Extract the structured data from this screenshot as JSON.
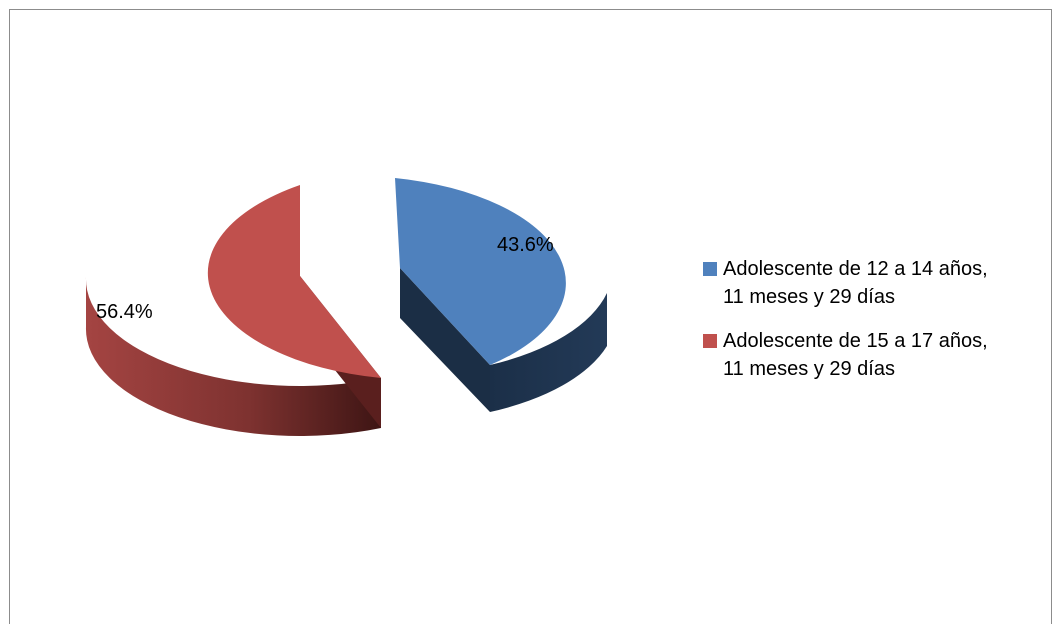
{
  "chart_data": {
    "type": "pie",
    "title": "",
    "style": "3d-exploded",
    "legend_position": "right",
    "series": [
      {
        "label_lines": [
          "Adolescente de 12 a 14 años,",
          "11 meses y 29 días"
        ],
        "value": 43.6,
        "data_label": "43.6%",
        "color": "#4F81BD",
        "side_color": "#1F3550"
      },
      {
        "label_lines": [
          "Adolescente de 15 a 17 años,",
          "11 meses y 29 días"
        ],
        "value": 56.4,
        "data_label": "56.4%",
        "color": "#C0504D",
        "side_color": "#7A2E2C"
      }
    ]
  }
}
